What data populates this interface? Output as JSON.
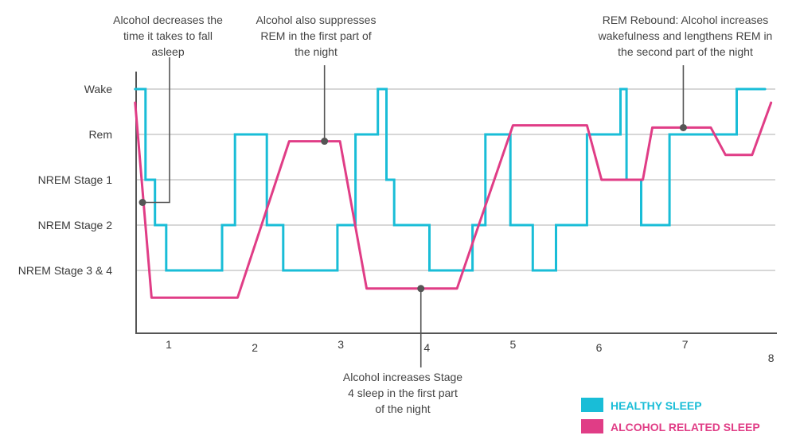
{
  "colors": {
    "healthy": "#19bdd7",
    "alcohol": "#e03d86",
    "axis": "#555555",
    "grid": "#bfbfbf",
    "annotation": "#555555"
  },
  "chart_data": {
    "type": "line",
    "y_categories": [
      "Wake",
      "Rem",
      "NREM Stage 1",
      "NREM Stage 2",
      "NREM Stage 3 & 4"
    ],
    "y_values_map": {
      "Wake": 5,
      "Rem": 4,
      "NREM Stage 1": 3,
      "NREM Stage 2": 2,
      "NREM Stage 3 & 4": 1
    },
    "x_ticks": [
      "1",
      "2",
      "3",
      "4",
      "5",
      "6",
      "7",
      "8"
    ],
    "xlim": [
      0.6,
      8.0
    ],
    "ylim": [
      0,
      5
    ],
    "grid": "horizontal",
    "series": [
      {
        "name": "HEALTHY SLEEP",
        "color": "#19bdd7",
        "step": true,
        "points": [
          [
            0.61,
            5
          ],
          [
            0.73,
            5
          ],
          [
            0.73,
            3
          ],
          [
            0.84,
            3
          ],
          [
            0.84,
            2
          ],
          [
            0.97,
            2
          ],
          [
            0.97,
            1
          ],
          [
            1.62,
            1
          ],
          [
            1.62,
            2
          ],
          [
            1.77,
            2
          ],
          [
            1.77,
            4
          ],
          [
            2.14,
            4
          ],
          [
            2.14,
            2
          ],
          [
            2.33,
            2
          ],
          [
            2.33,
            1
          ],
          [
            2.96,
            1
          ],
          [
            2.96,
            2
          ],
          [
            3.17,
            2
          ],
          [
            3.17,
            4
          ],
          [
            3.43,
            4
          ],
          [
            3.43,
            5
          ],
          [
            3.53,
            5
          ],
          [
            3.53,
            3
          ],
          [
            3.62,
            3
          ],
          [
            3.62,
            2
          ],
          [
            4.03,
            2
          ],
          [
            4.03,
            1
          ],
          [
            4.53,
            1
          ],
          [
            4.53,
            2
          ],
          [
            4.68,
            2
          ],
          [
            4.68,
            4
          ],
          [
            4.97,
            4
          ],
          [
            4.97,
            2
          ],
          [
            5.23,
            2
          ],
          [
            5.23,
            1
          ],
          [
            5.5,
            1
          ],
          [
            5.5,
            2
          ],
          [
            5.86,
            2
          ],
          [
            5.86,
            4
          ],
          [
            6.25,
            4
          ],
          [
            6.25,
            5
          ],
          [
            6.32,
            5
          ],
          [
            6.32,
            3
          ],
          [
            6.49,
            3
          ],
          [
            6.49,
            2
          ],
          [
            6.82,
            2
          ],
          [
            6.82,
            4
          ],
          [
            7.6,
            4
          ],
          [
            7.6,
            5
          ],
          [
            7.93,
            5
          ]
        ]
      },
      {
        "name": "ALCOHOL RELATED SLEEP",
        "color": "#e03d86",
        "step": false,
        "points": [
          [
            0.61,
            4.7
          ],
          [
            0.8,
            0.4
          ],
          [
            1.8,
            0.4
          ],
          [
            2.4,
            3.85
          ],
          [
            2.99,
            3.85
          ],
          [
            3.3,
            0.6
          ],
          [
            4.35,
            0.6
          ],
          [
            5.0,
            4.2
          ],
          [
            5.86,
            4.2
          ],
          [
            6.03,
            3.0
          ],
          [
            6.51,
            3.0
          ],
          [
            6.62,
            4.15
          ],
          [
            7.3,
            4.15
          ],
          [
            7.47,
            3.55
          ],
          [
            7.78,
            3.55
          ],
          [
            8.0,
            4.7
          ]
        ]
      }
    ],
    "annotations": [
      {
        "lines": [
          "Alcohol decreases the",
          "time it takes to fall",
          "asleep"
        ],
        "x": 0.695,
        "y": 2.5
      },
      {
        "lines": [
          "Alcohol also suppresses",
          "REM in the first part of",
          "the night"
        ],
        "x": 2.81,
        "y": 3.85
      },
      {
        "lines": [
          "Alcohol increases Stage",
          "4 sleep in the first part",
          "of the night"
        ],
        "x": 3.93,
        "y": 0.6
      },
      {
        "lines": [
          "REM Rebound: Alcohol increases",
          "wakefulness and lengthens REM in",
          "the second part of the night"
        ],
        "x": 6.98,
        "y": 4.15
      }
    ]
  },
  "legend": {
    "items": [
      {
        "label": "HEALTHY SLEEP",
        "color": "#19bdd7"
      },
      {
        "label": "ALCOHOL RELATED SLEEP",
        "color": "#e03d86"
      }
    ]
  }
}
